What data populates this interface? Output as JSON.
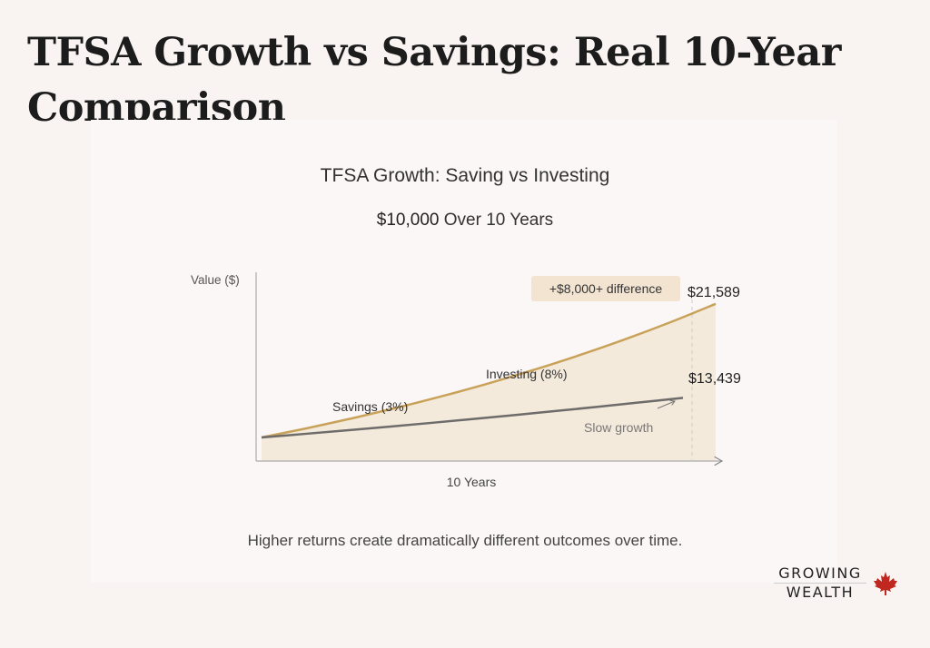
{
  "page": {
    "title": "TFSA Growth vs Savings: Real 10-Year Comparison"
  },
  "chart_data": {
    "type": "line",
    "title": "TFSA Growth: Saving vs Investing",
    "subtitle_amount": "$10,000",
    "subtitle_rest": "Over 10 Years",
    "ylabel": "Value ($)",
    "xlabel": "10 Years",
    "x": [
      0,
      1,
      2,
      3,
      4,
      5,
      6,
      7,
      8,
      9,
      10
    ],
    "series": [
      {
        "name": "Investing (8%)",
        "color": "#c9a25a",
        "values": [
          10000,
          10800,
          11664,
          12597,
          13605,
          14693,
          15869,
          17138,
          18509,
          19990,
          21589
        ],
        "end_label": "$21,589"
      },
      {
        "name": "Savings (3%)",
        "color": "#6e6b6b",
        "values": [
          10000,
          10300,
          10609,
          10927,
          11255,
          11593,
          11941,
          12299,
          12668,
          13048,
          13439
        ],
        "end_label": "$13,439"
      }
    ],
    "annotations": {
      "difference": "+$8,000+ difference",
      "slow_growth": "Slow growth"
    },
    "grid": false,
    "caption": "Higher returns create dramatically different outcomes over time."
  },
  "logo": {
    "line1": "GROWING",
    "line2": "WEALTH",
    "icon": "maple-leaf-icon",
    "icon_color": "#c0281f"
  }
}
